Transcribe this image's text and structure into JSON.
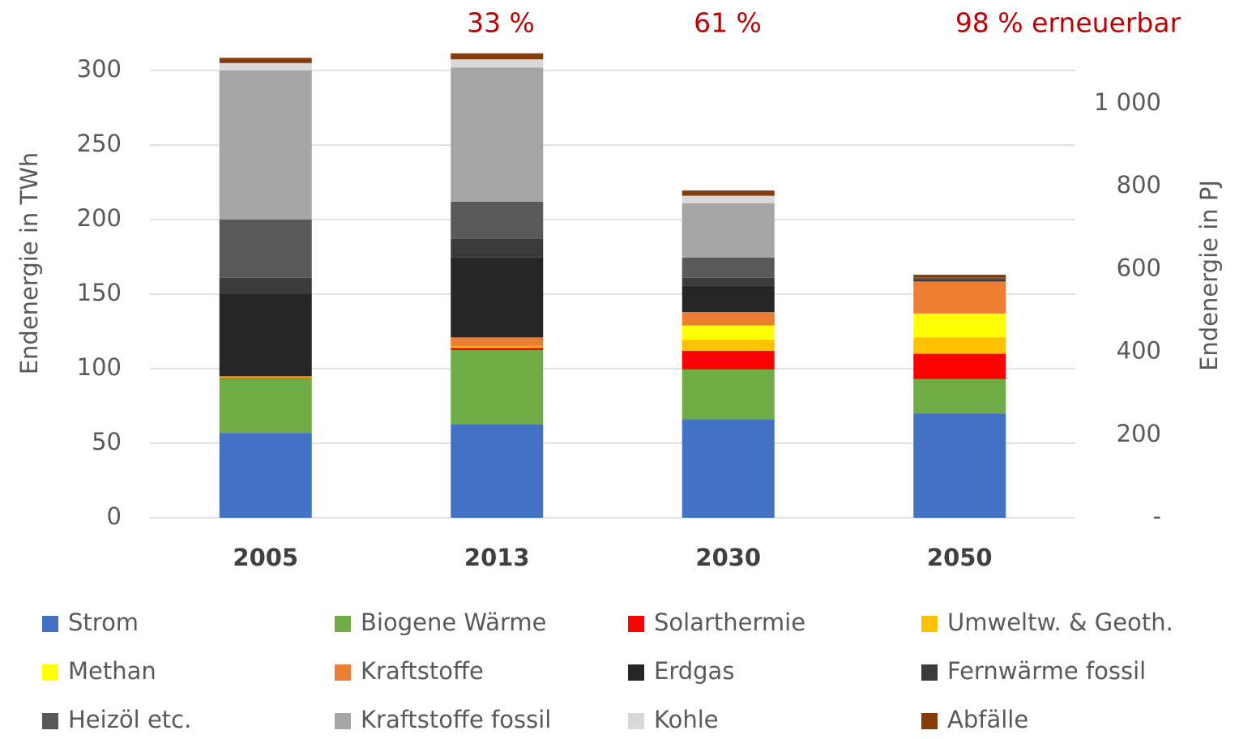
{
  "chart_data": {
    "type": "stacked_bar",
    "categories": [
      "2005",
      "2013",
      "2030",
      "2050"
    ],
    "series": [
      {
        "name": "Strom",
        "color": "#4472c4",
        "values": [
          57,
          62.5,
          66,
          70
        ]
      },
      {
        "name": "Biogene Wärme",
        "color": "#70ad47",
        "values": [
          36,
          50,
          33.5,
          23
        ]
      },
      {
        "name": "Solarthermie",
        "color": "#ff0000",
        "values": [
          0.5,
          1.5,
          12.5,
          17
        ]
      },
      {
        "name": "Umweltw. & Geoth.",
        "color": "#ffc000",
        "values": [
          0.5,
          1,
          7.5,
          11
        ]
      },
      {
        "name": "Methan",
        "color": "#ffff00",
        "values": [
          0,
          0,
          9.5,
          16
        ]
      },
      {
        "name": "Kraftstoffe",
        "color": "#ed7d31",
        "values": [
          1,
          6,
          9,
          21.5
        ]
      },
      {
        "name": "Erdgas",
        "color": "#262626",
        "values": [
          55,
          53.5,
          17.5,
          0
        ]
      },
      {
        "name": "Fernwärme fossil",
        "color": "#3a3a3a",
        "values": [
          11,
          12.5,
          5.5,
          1.5
        ]
      },
      {
        "name": "Heizöl etc.",
        "color": "#595959",
        "values": [
          39,
          25,
          13.5,
          1
        ]
      },
      {
        "name": "Kraftstoffe fossil",
        "color": "#a5a5a5",
        "values": [
          100,
          90,
          36.5,
          0
        ]
      },
      {
        "name": "Kohle",
        "color": "#d9d9d9",
        "values": [
          5,
          5.5,
          5,
          0
        ]
      },
      {
        "name": "Abfälle",
        "color": "#843c0c",
        "values": [
          3.5,
          4,
          3.5,
          2
        ]
      }
    ],
    "ylabel": "Endenergie in TWh",
    "y2label": "Endenergie in PJ",
    "ylim": [
      0,
      300
    ],
    "yticks": [
      0,
      50,
      100,
      150,
      200,
      250,
      300
    ],
    "y2lim": [
      0,
      1080
    ],
    "y2ticks": [
      {
        "value": 0,
        "label": "-"
      },
      200,
      400,
      600,
      800,
      {
        "value": 1000,
        "label": "1 000"
      }
    ],
    "annotations": [
      "33 %",
      "61 %",
      "98 % erneuerbar"
    ],
    "annotation_color": "#c00000",
    "grid": true
  }
}
